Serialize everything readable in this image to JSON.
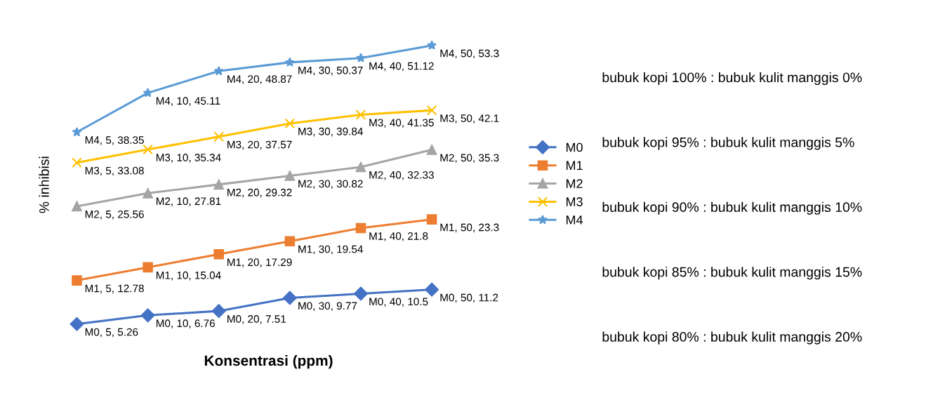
{
  "chart_data": {
    "type": "line",
    "xlabel": "Konsentrasi (ppm)",
    "ylabel": "% inhibisi",
    "categories": [
      null,
      null,
      null,
      null,
      null,
      null
    ],
    "series": [
      {
        "name": "M0",
        "color": "#4472c4",
        "marker": "diamond",
        "values": [
          5.26,
          6.76,
          7.51,
          9.77,
          10.5,
          11.2
        ],
        "value_labels": [
          "M0, 5, 5.26",
          "M0, 10, 6.76",
          "M0, 20, 7.51",
          "M0, 30, 9.77",
          "M0, 40, 10.5",
          "M0, 50, 11.2"
        ]
      },
      {
        "name": "M1",
        "color": "#ed7d31",
        "marker": "square",
        "values": [
          12.78,
          15.04,
          17.29,
          19.54,
          21.8,
          23.3
        ],
        "value_labels": [
          "M1, 5, 12.78",
          "M1, 10, 15.04",
          "M1, 20, 17.29",
          "M1, 30, 19.54",
          "M1, 40, 21.8",
          "M1, 50, 23.3"
        ]
      },
      {
        "name": "M2",
        "color": "#a5a5a5",
        "marker": "triangle",
        "values": [
          25.56,
          27.81,
          29.32,
          30.82,
          32.33,
          35.3
        ],
        "value_labels": [
          "M2, 5, 25.56",
          "M2, 10, 27.81",
          "M2, 20, 29.32",
          "M2, 30, 30.82",
          "M2, 40, 32.33",
          "M2, 50, 35.3"
        ]
      },
      {
        "name": "M3",
        "color": "#ffc000",
        "marker": "cross",
        "values": [
          33.08,
          35.34,
          37.57,
          39.84,
          41.35,
          42.1
        ],
        "value_labels": [
          "M3, 5, 33.08",
          "M3, 10, 35.34",
          "M3, 20, 37.57",
          "M3, 30, 39.84",
          "M3, 40, 41.35",
          "M3, 50, 42.1"
        ]
      },
      {
        "name": "M4",
        "color": "#5b9bd5",
        "marker": "star",
        "values": [
          38.35,
          45.11,
          48.87,
          50.37,
          51.12,
          53.3
        ],
        "value_labels": [
          "M4, 5, 38.35",
          "M4, 10, 45.11",
          "M4, 20, 48.87",
          "M4, 30, 50.37",
          "M4, 40, 51.12",
          "M4, 50, 53.3"
        ]
      }
    ],
    "legend": "right",
    "grid": false,
    "tick_labels": false,
    "line_style": "solid",
    "annotations": [
      "bubuk kopi 100% : bubuk kulit manggis 0%",
      "bubuk kopi 95% : bubuk kulit manggis 5%",
      "bubuk kopi 90% : bubuk kulit manggis 10%",
      "bubuk kopi 85% : bubuk kulit manggis 15%",
      "bubuk kopi 80% : bubuk kulit manggis 20%"
    ]
  }
}
